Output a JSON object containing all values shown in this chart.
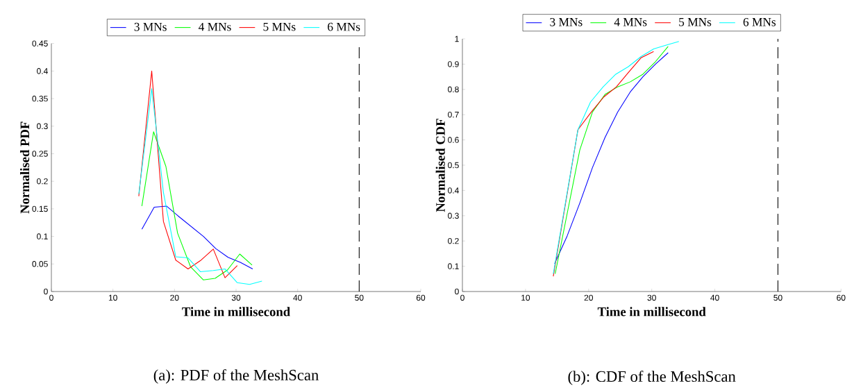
{
  "chart_data": [
    {
      "type": "line",
      "xlabel": "Time in millisecond",
      "ylabel": "Normalised PDF",
      "xlim": [
        0,
        60
      ],
      "ylim": [
        0,
        0.45
      ],
      "xticks": [
        0,
        10,
        20,
        30,
        40,
        50,
        60
      ],
      "yticks": [
        0,
        0.05,
        0.1,
        0.15,
        0.2,
        0.25,
        0.3,
        0.35,
        0.4,
        0.45
      ],
      "legend": "top",
      "grid": false,
      "marker": "none",
      "series": [
        {
          "name": "3 MNs",
          "color": "#0000ff",
          "x": [
            14.7,
            16.7,
            18.7,
            20.6,
            24.7,
            26.7,
            28.7,
            30.7,
            32.7
          ],
          "values": [
            0.113,
            0.153,
            0.155,
            0.137,
            0.1,
            0.078,
            0.062,
            0.053,
            0.041
          ]
        },
        {
          "name": "4 MNs",
          "color": "#00ff00",
          "x": [
            14.7,
            16.6,
            18.6,
            20.5,
            22.6,
            24.7,
            26.6,
            28.6,
            30.6,
            32.6
          ],
          "values": [
            0.155,
            0.29,
            0.227,
            0.106,
            0.045,
            0.021,
            0.024,
            0.039,
            0.068,
            0.048
          ]
        },
        {
          "name": "5 MNs",
          "color": "#ff0000",
          "x": [
            14.2,
            16.3,
            18.2,
            20.2,
            22.2,
            24.2,
            26.3,
            28.2,
            30.2
          ],
          "values": [
            0.173,
            0.4,
            0.127,
            0.057,
            0.041,
            0.056,
            0.077,
            0.025,
            0.047
          ]
        },
        {
          "name": "6 MNs",
          "color": "#00ffff",
          "x": [
            14.2,
            16.3,
            18.2,
            20.2,
            22.2,
            24.2,
            26.3,
            28.2,
            30.2,
            32.2,
            34.2
          ],
          "values": [
            0.177,
            0.368,
            0.18,
            0.063,
            0.061,
            0.036,
            0.038,
            0.041,
            0.016,
            0.013,
            0.019
          ]
        }
      ],
      "ref_lines": [
        {
          "axis": "x",
          "value": 50,
          "color": "#000000",
          "line_style": "dashed"
        }
      ],
      "annotations": [
        "(a): PDF of the MeshScan"
      ]
    },
    {
      "type": "line",
      "xlabel": "Time in millisecond",
      "ylabel": "Normalised CDF",
      "xlim": [
        0,
        60
      ],
      "ylim": [
        0,
        1
      ],
      "xticks": [
        0,
        10,
        20,
        30,
        40,
        50,
        60
      ],
      "yticks": [
        0,
        0.1,
        0.2,
        0.3,
        0.4,
        0.5,
        0.6,
        0.7,
        0.8,
        0.9,
        1
      ],
      "legend": "top",
      "grid": false,
      "marker": "none",
      "series": [
        {
          "name": "3 MNs",
          "color": "#0000ff",
          "x": [
            14.6,
            16.6,
            18.6,
            20.6,
            22.6,
            24.6,
            26.6,
            28.6,
            30.6,
            32.6
          ],
          "values": [
            0.11,
            0.22,
            0.35,
            0.49,
            0.61,
            0.71,
            0.79,
            0.85,
            0.9,
            0.945
          ]
        },
        {
          "name": "4 MNs",
          "color": "#00ff00",
          "x": [
            14.7,
            18.6,
            20.6,
            22.6,
            24.6,
            26.6,
            28.6,
            30.6,
            32.6
          ],
          "values": [
            0.07,
            0.56,
            0.71,
            0.78,
            0.81,
            0.83,
            0.86,
            0.91,
            0.97
          ]
        },
        {
          "name": "5 MNs",
          "color": "#ff0000",
          "x": [
            14.4,
            18.3,
            20.4,
            22.4,
            24.4,
            26.4,
            28.3,
            30.3
          ],
          "values": [
            0.06,
            0.64,
            0.71,
            0.77,
            0.81,
            0.87,
            0.925,
            0.95
          ]
        },
        {
          "name": "6 MNs",
          "color": "#00ffff",
          "x": [
            14.4,
            18.3,
            20.3,
            22.3,
            24.3,
            26.3,
            28.3,
            30.3,
            32.3,
            34.3
          ],
          "values": [
            0.07,
            0.64,
            0.75,
            0.81,
            0.86,
            0.89,
            0.93,
            0.96,
            0.975,
            0.99
          ]
        }
      ],
      "ref_lines": [
        {
          "axis": "x",
          "value": 50,
          "color": "#000000",
          "line_style": "dashed"
        }
      ],
      "annotations": [
        "(b): CDF of the MeshScan"
      ]
    }
  ]
}
